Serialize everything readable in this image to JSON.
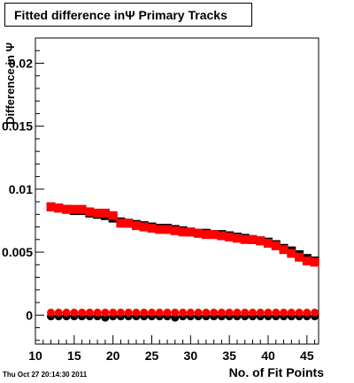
{
  "chart_data": {
    "type": "scatter",
    "title": "Fitted difference inΨ  Primary Tracks",
    "xlabel": "No. of Fit Points",
    "ylabel": "Difference in Ψ",
    "xlim": [
      10,
      46.5
    ],
    "ylim": [
      -0.0023,
      0.022
    ],
    "grid": false,
    "legend": "none",
    "x_ticks": [
      {
        "v": 10,
        "label": "10"
      },
      {
        "v": 15,
        "label": "15"
      },
      {
        "v": 20,
        "label": "20"
      },
      {
        "v": 25,
        "label": "25"
      },
      {
        "v": 30,
        "label": "30"
      },
      {
        "v": 35,
        "label": "35"
      },
      {
        "v": 40,
        "label": "40"
      },
      {
        "v": 45,
        "label": "45"
      }
    ],
    "y_ticks": [
      {
        "v": 0,
        "label": "0"
      },
      {
        "v": 0.005,
        "label": "0.005"
      },
      {
        "v": 0.01,
        "label": "0.01"
      },
      {
        "v": 0.015,
        "label": "0.015"
      },
      {
        "v": 0.02,
        "label": "0.02"
      }
    ],
    "x": [
      12,
      13,
      14,
      15,
      16,
      17,
      18,
      19,
      20,
      21,
      22,
      23,
      24,
      25,
      26,
      27,
      28,
      29,
      30,
      31,
      32,
      33,
      34,
      35,
      36,
      37,
      38,
      39,
      40,
      41,
      42,
      43,
      44,
      45,
      46
    ],
    "series": [
      {
        "marker": "square",
        "color": "#000000",
        "values": [
          0.0086,
          0.0085,
          0.0084,
          0.0083,
          0.0083,
          0.0081,
          0.008,
          0.0079,
          0.0077,
          0.0074,
          0.0073,
          0.0072,
          0.0071,
          0.007,
          0.0069,
          0.0069,
          0.0068,
          0.0067,
          0.0066,
          0.0065,
          0.0065,
          0.0064,
          0.0064,
          0.0063,
          0.0062,
          0.0061,
          0.006,
          0.0059,
          0.0058,
          0.0056,
          0.0053,
          0.0051,
          0.0048,
          0.0045,
          0.0043
        ]
      },
      {
        "marker": "square",
        "color": "#ff0000",
        "values": [
          0.0086,
          0.0085,
          0.0084,
          0.0084,
          0.0084,
          0.0082,
          0.0081,
          0.0081,
          0.0079,
          0.0073,
          0.0073,
          0.0071,
          0.007,
          0.0069,
          0.0068,
          0.0068,
          0.0067,
          0.0066,
          0.0066,
          0.0065,
          0.0064,
          0.0064,
          0.0063,
          0.0062,
          0.0061,
          0.006,
          0.006,
          0.0059,
          0.0057,
          0.0055,
          0.0052,
          0.0049,
          0.0046,
          0.0043,
          0.0042
        ]
      },
      {
        "marker": "circle",
        "color": "#000000",
        "values": [
          -0.0001,
          -0.0001,
          -0.0001,
          -0.0001,
          -0.0001,
          -0.0001,
          -0.0001,
          -0.0002,
          -0.0001,
          -0.0001,
          -0.0001,
          -0.0001,
          -0.0001,
          -0.0001,
          -0.0001,
          -0.0001,
          -0.0002,
          -0.0001,
          -0.0001,
          -0.0001,
          -0.0001,
          -0.0001,
          -0.0001,
          -0.0001,
          -0.0001,
          -0.0001,
          -0.0001,
          -0.0001,
          -0.0001,
          -0.0001,
          -0.0001,
          -0.0001,
          -0.0001,
          -0.0001,
          -0.0001
        ]
      },
      {
        "marker": "circle",
        "color": "#ff0000",
        "values": [
          0.0002,
          0.0002,
          0.0002,
          0.0002,
          0.0002,
          0.0002,
          0.0002,
          0.0002,
          0.0002,
          0.0002,
          0.0002,
          0.0002,
          0.0002,
          0.0002,
          0.0002,
          0.0002,
          0.0002,
          0.0002,
          0.0002,
          0.0002,
          0.0002,
          0.0002,
          0.0002,
          0.0002,
          0.0002,
          0.0002,
          0.0002,
          0.0002,
          0.0002,
          0.0002,
          0.0002,
          0.0002,
          0.0002,
          0.0002,
          0.0002
        ]
      }
    ]
  },
  "footer": {
    "timestamp": "Thu Oct 27 20:14:30 2011"
  }
}
